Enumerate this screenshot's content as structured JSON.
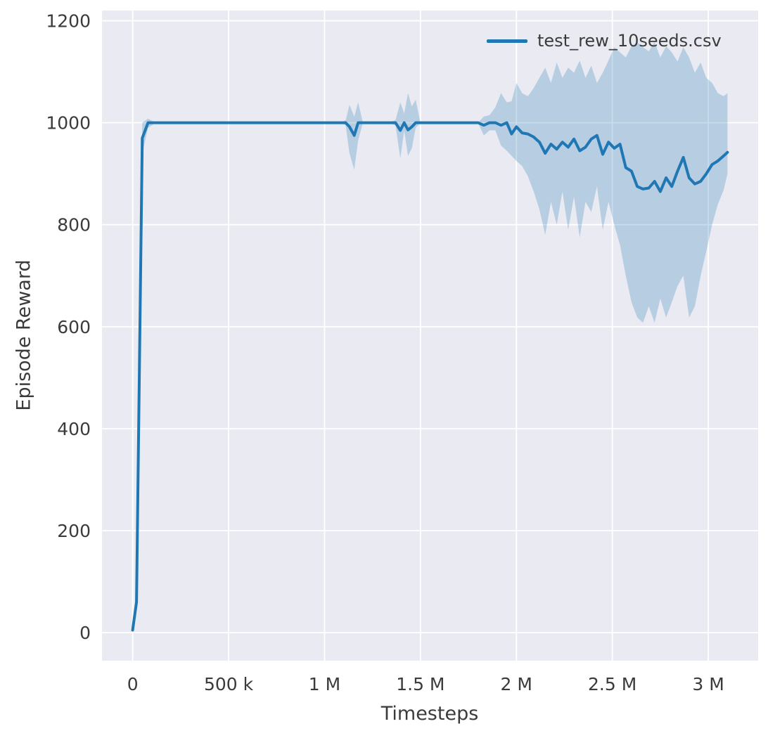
{
  "figure": {
    "background": "#ffffff",
    "axes_background": "#eaeaf2",
    "grid_color": "#ffffff",
    "text_color": "#3b3b3b"
  },
  "chart_data": {
    "type": "line",
    "title": "",
    "xlabel": "Timesteps",
    "ylabel": "Episode Reward",
    "grid": true,
    "legend_position": "upper right",
    "xlim": [
      -160000,
      3260000
    ],
    "ylim": [
      -55,
      1220
    ],
    "xticks": {
      "values": [
        0,
        500000,
        1000000,
        1500000,
        2000000,
        2500000,
        3000000
      ],
      "labels": [
        "0",
        "500 k",
        "1 M",
        "1.5 M",
        "2 M",
        "2.5 M",
        "3 M"
      ]
    },
    "yticks": {
      "values": [
        0,
        200,
        400,
        600,
        800,
        1000,
        1200
      ],
      "labels": [
        "0",
        "200",
        "400",
        "600",
        "800",
        "1000",
        "1200"
      ]
    },
    "series": [
      {
        "name": "test_rew_10seeds.csv",
        "color": "#1f77b4",
        "line_width": 4,
        "band_opacity": 0.25,
        "x": [
          0,
          20000,
          50000,
          80000,
          120000,
          200000,
          350000,
          500000,
          650000,
          800000,
          950000,
          1080000,
          1110000,
          1130000,
          1155000,
          1175000,
          1200000,
          1260000,
          1330000,
          1370000,
          1395000,
          1415000,
          1435000,
          1455000,
          1475000,
          1500000,
          1600000,
          1700000,
          1800000,
          1830000,
          1860000,
          1890000,
          1920000,
          1950000,
          1975000,
          2000000,
          2030000,
          2060000,
          2090000,
          2120000,
          2150000,
          2180000,
          2210000,
          2240000,
          2270000,
          2300000,
          2330000,
          2360000,
          2390000,
          2420000,
          2450000,
          2480000,
          2510000,
          2540000,
          2570000,
          2600000,
          2630000,
          2660000,
          2690000,
          2720000,
          2750000,
          2780000,
          2810000,
          2840000,
          2870000,
          2900000,
          2930000,
          2960000,
          2990000,
          3020000,
          3050000,
          3080000,
          3100000
        ],
        "mean": [
          5,
          60,
          970,
          1000,
          1000,
          1000,
          1000,
          1000,
          1000,
          1000,
          1000,
          1000,
          1000,
          992,
          975,
          1000,
          1000,
          1000,
          1000,
          1000,
          985,
          1000,
          986,
          992,
          1000,
          1000,
          1000,
          1000,
          1000,
          995,
          1000,
          1000,
          995,
          1000,
          978,
          992,
          980,
          978,
          972,
          962,
          940,
          958,
          948,
          962,
          952,
          968,
          945,
          952,
          968,
          975,
          938,
          962,
          950,
          958,
          912,
          905,
          875,
          870,
          872,
          885,
          865,
          892,
          875,
          905,
          932,
          892,
          880,
          885,
          900,
          918,
          925,
          935,
          942
        ],
        "lower": [
          5,
          50,
          940,
          990,
          1000,
          1000,
          1000,
          1000,
          1000,
          1000,
          1000,
          1000,
          995,
          940,
          908,
          965,
          1000,
          1000,
          1000,
          995,
          930,
          985,
          935,
          950,
          990,
          1000,
          1000,
          1000,
          1000,
          975,
          985,
          985,
          955,
          945,
          935,
          925,
          915,
          895,
          865,
          830,
          780,
          845,
          800,
          865,
          790,
          855,
          775,
          845,
          825,
          875,
          790,
          845,
          800,
          760,
          700,
          648,
          618,
          608,
          640,
          608,
          655,
          618,
          648,
          680,
          700,
          618,
          640,
          700,
          748,
          800,
          840,
          868,
          900
        ],
        "upper": [
          5,
          70,
          1000,
          1008,
          1000,
          1000,
          1000,
          1000,
          1000,
          1000,
          1000,
          1000,
          1005,
          1035,
          1012,
          1040,
          1000,
          1000,
          1000,
          1005,
          1040,
          1018,
          1058,
          1032,
          1045,
          1000,
          1000,
          1000,
          1000,
          1012,
          1015,
          1030,
          1058,
          1040,
          1042,
          1078,
          1058,
          1052,
          1068,
          1088,
          1108,
          1078,
          1118,
          1088,
          1108,
          1098,
          1122,
          1088,
          1112,
          1078,
          1098,
          1122,
          1148,
          1138,
          1128,
          1150,
          1158,
          1148,
          1140,
          1158,
          1128,
          1150,
          1138,
          1120,
          1148,
          1128,
          1098,
          1118,
          1088,
          1078,
          1058,
          1052,
          1058
        ]
      }
    ]
  }
}
